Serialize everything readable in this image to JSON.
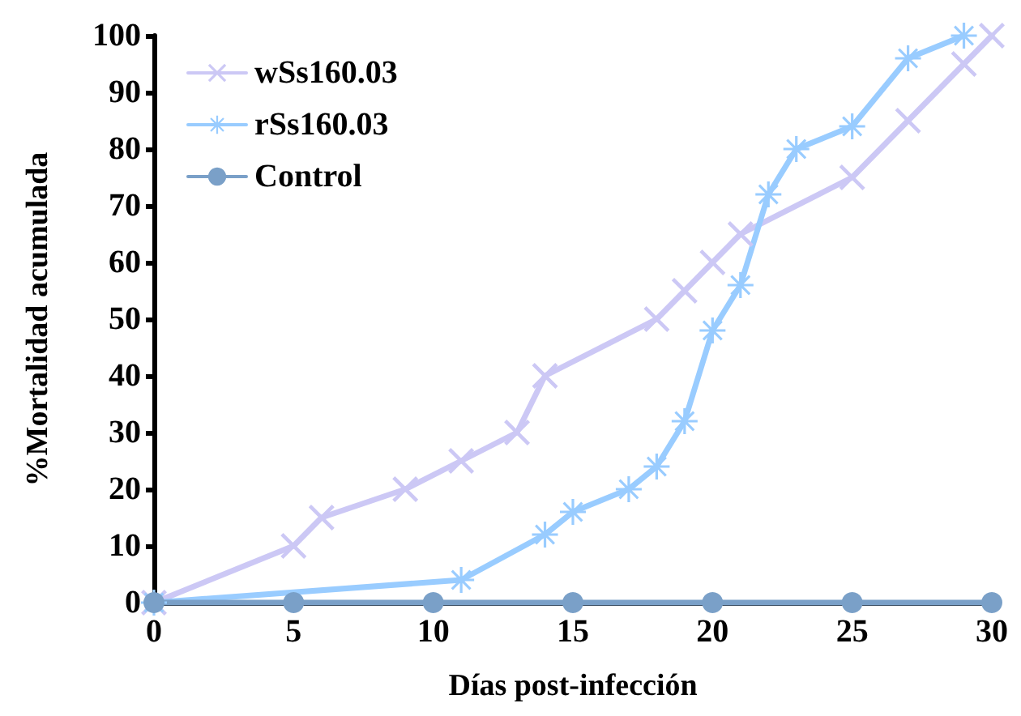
{
  "chart_data": {
    "type": "line",
    "xlabel": "Días post-infección",
    "ylabel": "%Mortalidad acumulada",
    "xlim": [
      0,
      30
    ],
    "xticks": [
      0,
      5,
      10,
      15,
      20,
      25,
      30
    ],
    "ylim": [
      0,
      100
    ],
    "yticks": [
      0,
      10,
      20,
      30,
      40,
      50,
      60,
      70,
      80,
      90,
      100
    ],
    "grid": false,
    "legend": "top left",
    "line_style": "solid",
    "series": [
      {
        "name": "wSs160.03",
        "color": "#ccc8f5",
        "marker": "cross",
        "x": [
          0,
          5,
          6,
          9,
          11,
          13,
          14,
          18,
          19,
          20,
          21,
          25,
          27,
          29,
          30
        ],
        "values": [
          0,
          10,
          15,
          20,
          25,
          30,
          40,
          50,
          55,
          60,
          65,
          75,
          85,
          95,
          100
        ]
      },
      {
        "name": "rSs160.03",
        "color": "#99ccff",
        "marker": "star",
        "x": [
          0,
          11,
          14,
          15,
          17,
          18,
          19,
          20,
          21,
          22,
          23,
          25,
          27,
          29
        ],
        "values": [
          0,
          4,
          12,
          16,
          20,
          24,
          32,
          48,
          56,
          72,
          80,
          84,
          96,
          100
        ]
      },
      {
        "name": "Control",
        "color": "#7aa0c8",
        "marker": "circle",
        "x": [
          0,
          5,
          10,
          15,
          20,
          25,
          30
        ],
        "values": [
          0,
          0,
          0,
          0,
          0,
          0,
          0
        ]
      }
    ]
  }
}
